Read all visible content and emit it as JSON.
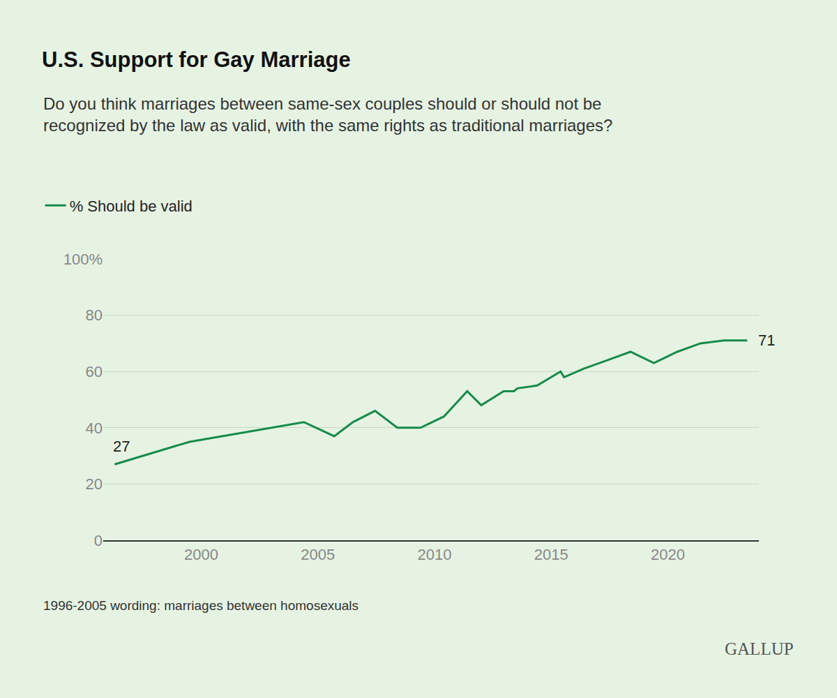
{
  "chart_data": {
    "type": "line",
    "title": "U.S. Support for Gay Marriage",
    "subtitle": [
      "Do you think marriages between same-sex couples should or should not be",
      "recognized by the law as valid, with the same rights as traditional marriages?"
    ],
    "note": "1996-2005 wording: marriages between homosexuals",
    "source": "GALLUP",
    "x": [
      1996.29,
      1999.5,
      2004.4,
      2005.7,
      2006.5,
      2007.45,
      2008.4,
      2009.4,
      2010.4,
      2011.4,
      2012.0,
      2012.96,
      2013.4,
      2013.55,
      2014.4,
      2015.4,
      2015.55,
      2016.4,
      2017.4,
      2018.4,
      2019.4,
      2020.4,
      2021.4,
      2022.4,
      2023.4
    ],
    "series": [
      {
        "name": "% Should be valid",
        "color": "#178a4c",
        "values": [
          27,
          35,
          42,
          37,
          42,
          46,
          40,
          40,
          44,
          53,
          48,
          53,
          53,
          54,
          55,
          60,
          58,
          61,
          64,
          67,
          63,
          67,
          70,
          71,
          71
        ]
      }
    ],
    "xlim": [
      1995.8,
      2023.9
    ],
    "xticks": [
      2000,
      2005,
      2010,
      2015,
      2020
    ],
    "ylim": [
      0,
      100
    ],
    "yticks": [
      0,
      20,
      40,
      60,
      80,
      {
        "value": 100,
        "label": "100%"
      }
    ],
    "grid": true,
    "legend": "top left",
    "annotations": [
      {
        "x": 1996.29,
        "y": 27,
        "text": "27"
      },
      {
        "x": 2023.4,
        "y": 71,
        "text": "71"
      }
    ]
  }
}
